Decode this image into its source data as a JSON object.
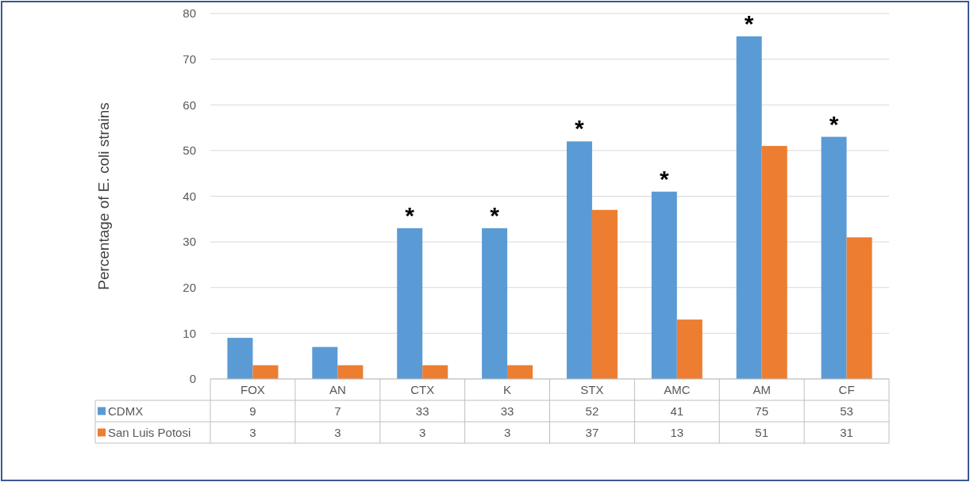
{
  "chart_data": {
    "type": "bar",
    "ylabel": "Percentage of E. coli strains",
    "categories": [
      "FOX",
      "AN",
      "CTX",
      "K",
      "STX",
      "AMC",
      "AM",
      "CF"
    ],
    "series": [
      {
        "name": "CDMX",
        "color": "#5b9bd5",
        "values": [
          9,
          7,
          33,
          33,
          52,
          41,
          75,
          53
        ]
      },
      {
        "name": "San Luis Potosi",
        "color": "#ed7d31",
        "values": [
          3,
          3,
          3,
          3,
          37,
          13,
          51,
          31
        ]
      }
    ],
    "ylim": [
      0,
      80
    ],
    "yticks": [
      0,
      10,
      20,
      30,
      40,
      50,
      60,
      70,
      80
    ],
    "grid": "y",
    "legend": "bottom",
    "data_labels": true,
    "annotations": [
      {
        "text": "*",
        "x": "CTX",
        "y": 33
      },
      {
        "text": "*",
        "x": "K",
        "y": 33
      },
      {
        "text": "*",
        "x": "STX",
        "y": 52
      },
      {
        "text": "*",
        "x": "AMC",
        "y": 41
      },
      {
        "text": "*",
        "x": "AM",
        "y": 75
      },
      {
        "text": "*",
        "x": "CF",
        "y": 53
      }
    ]
  }
}
